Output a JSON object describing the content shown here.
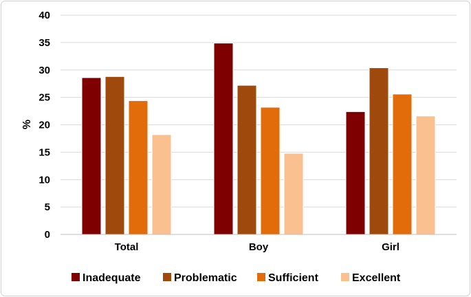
{
  "chart_data": {
    "type": "bar",
    "title": "",
    "xlabel": "",
    "ylabel": "%",
    "ylim": [
      0,
      40
    ],
    "yticks": [
      0,
      5,
      10,
      15,
      20,
      25,
      30,
      35,
      40
    ],
    "grid": true,
    "legend_position": "bottom",
    "categories": [
      "Total",
      "Boy",
      "Girl"
    ],
    "series": [
      {
        "name": "Inadequate",
        "color": "#7f0000",
        "values": [
          28.6,
          34.9,
          22.4
        ]
      },
      {
        "name": "Problematic",
        "color": "#a0490c",
        "values": [
          28.8,
          27.2,
          30.4
        ]
      },
      {
        "name": "Sufficient",
        "color": "#e36c0a",
        "values": [
          24.4,
          23.2,
          25.6
        ]
      },
      {
        "name": "Excellent",
        "color": "#fac090",
        "values": [
          18.2,
          14.8,
          21.6
        ]
      }
    ]
  }
}
